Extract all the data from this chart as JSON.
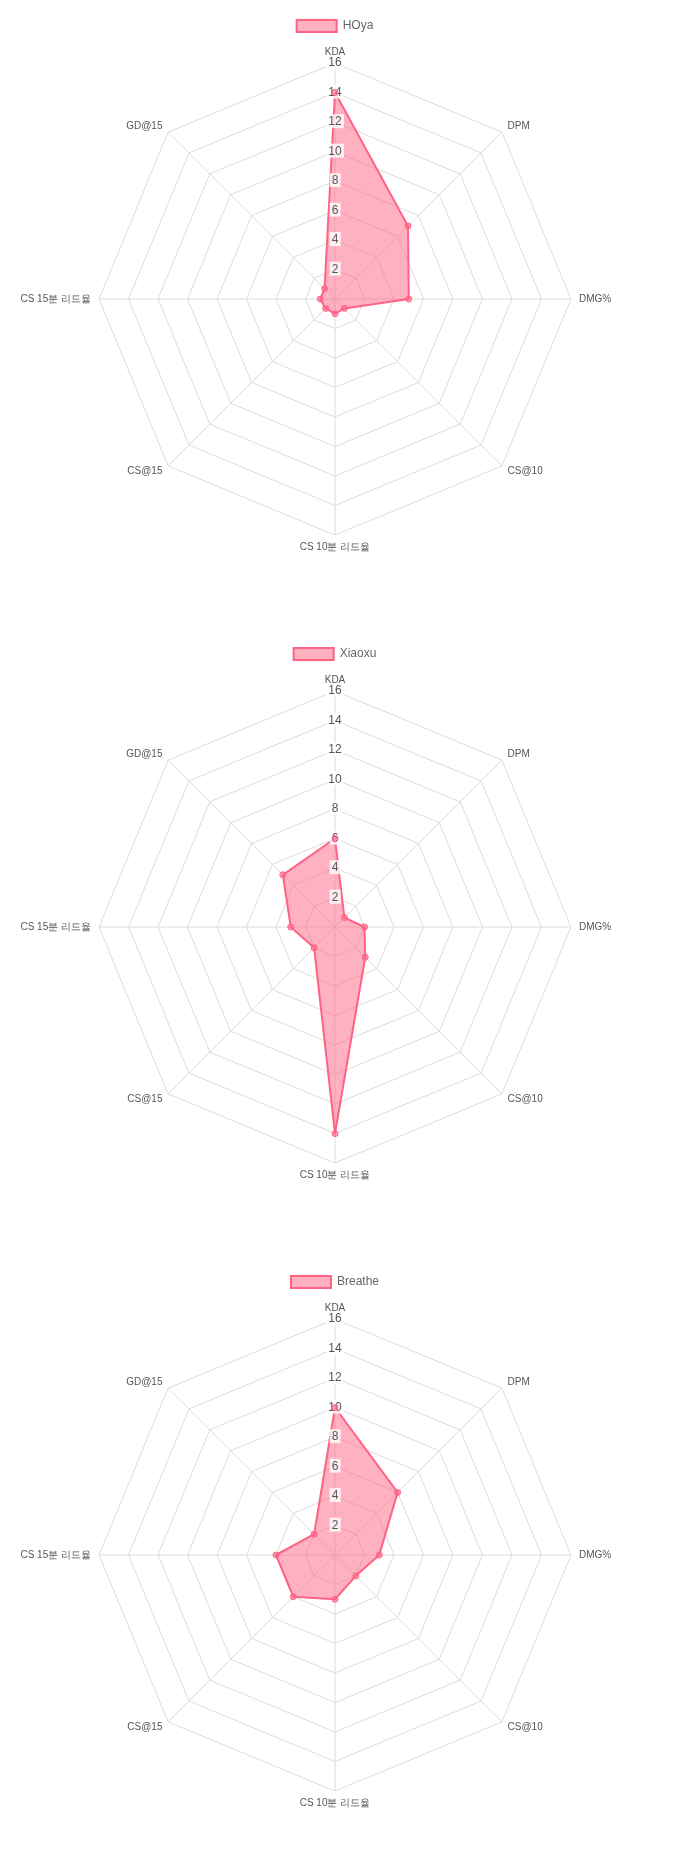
{
  "chart_data": [
    {
      "type": "radar",
      "categories": [
        "KDA",
        "DPM",
        "DMG%",
        "CS@10",
        "CS 10분 리드율",
        "CS@15",
        "CS 15분 리드율",
        "GD@15"
      ],
      "ylim": [
        0,
        16
      ],
      "yticks": [
        2,
        4,
        6,
        8,
        10,
        12,
        14,
        16
      ],
      "grid": true,
      "legend": "top",
      "marker": "circle",
      "series": [
        {
          "name": "HOya",
          "color": "#ff6384",
          "values": [
            14,
            7,
            5,
            0.9,
            1,
            0.9,
            1,
            1
          ]
        }
      ]
    },
    {
      "type": "radar",
      "categories": [
        "KDA",
        "DPM",
        "DMG%",
        "CS@10",
        "CS 10분 리드율",
        "CS@15",
        "CS 15분 리드율",
        "GD@15"
      ],
      "ylim": [
        0,
        16
      ],
      "yticks": [
        2,
        4,
        6,
        8,
        10,
        12,
        14,
        16
      ],
      "grid": true,
      "legend": "top",
      "marker": "circle",
      "series": [
        {
          "name": "Xiaoxu",
          "color": "#ff6384",
          "values": [
            6,
            0.9,
            2,
            2.9,
            14,
            2,
            3,
            5
          ]
        }
      ]
    },
    {
      "type": "radar",
      "categories": [
        "KDA",
        "DPM",
        "DMG%",
        "CS@10",
        "CS 10분 리드율",
        "CS@15",
        "CS 15분 리드율",
        "GD@15"
      ],
      "ylim": [
        0,
        16
      ],
      "yticks": [
        2,
        4,
        6,
        8,
        10,
        12,
        14,
        16
      ],
      "grid": true,
      "legend": "top",
      "marker": "circle",
      "series": [
        {
          "name": "Breathe",
          "color": "#ff6384",
          "values": [
            10,
            6,
            3,
            2,
            3,
            4,
            4,
            2
          ]
        }
      ]
    }
  ]
}
